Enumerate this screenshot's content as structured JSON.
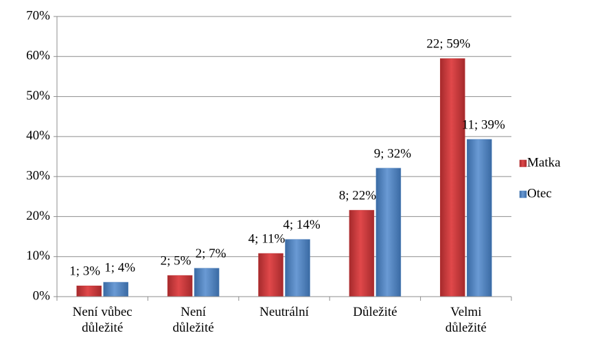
{
  "chart_data": {
    "type": "bar",
    "categories": [
      "Není vůbec důležité",
      "Není důležité",
      "Neutrální",
      "Důležité",
      "Velmi důležité"
    ],
    "series": [
      {
        "name": "Matka",
        "color": "#c0393b",
        "values": [
          2.7,
          5.3,
          10.8,
          21.6,
          59.5
        ],
        "value_labels": [
          "1; 3%",
          "2; 5%",
          "4; 11%",
          "8; 22%",
          "22; 59%"
        ]
      },
      {
        "name": "Otec",
        "color": "#4f81bd",
        "values": [
          3.6,
          7.1,
          14.3,
          32.1,
          39.3
        ],
        "value_labels": [
          "1; 4%",
          "2; 7%",
          "4; 14%",
          "9; 32%",
          "11; 39%"
        ]
      }
    ],
    "ylim": [
      0,
      70
    ],
    "yticks": [
      {
        "value": 0,
        "label": "0%"
      },
      {
        "value": 10,
        "label": "10%"
      },
      {
        "value": 20,
        "label": "20%"
      },
      {
        "value": 30,
        "label": "30%"
      },
      {
        "value": 40,
        "label": "40%"
      },
      {
        "value": 50,
        "label": "50%"
      },
      {
        "value": 60,
        "label": "60%"
      },
      {
        "value": 70,
        "label": "70%"
      }
    ],
    "grid": true,
    "legend": "right"
  }
}
